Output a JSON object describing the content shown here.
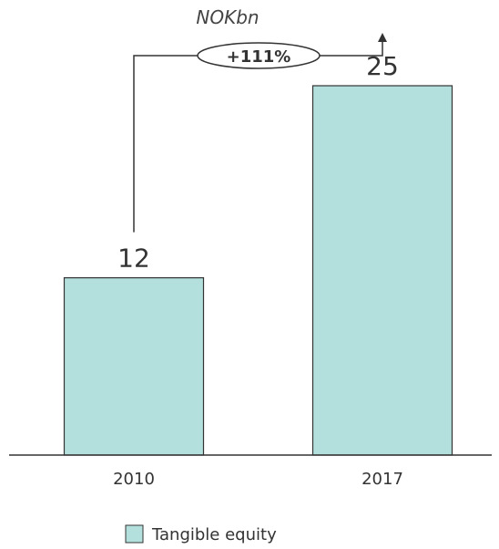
{
  "chart_data": {
    "type": "bar",
    "unit": "NOKbn",
    "categories": [
      "2010",
      "2017"
    ],
    "series": [
      {
        "name": "Tangible equity",
        "values": [
          12,
          25
        ],
        "color": "#b3e0dc"
      }
    ],
    "data_labels": [
      "12",
      "25"
    ],
    "growth_annotation": "+111%",
    "ylim": [
      0,
      30
    ],
    "grid": false,
    "legend_position": "bottom"
  }
}
